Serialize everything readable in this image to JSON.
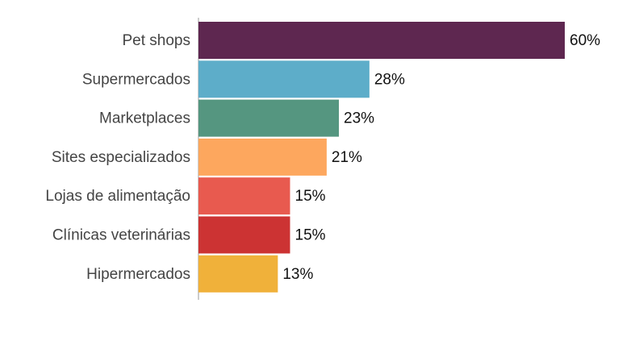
{
  "chart_data": {
    "type": "bar",
    "orientation": "horizontal",
    "categories": [
      "Pet shops",
      "Supermercados",
      "Marketplaces",
      "Sites especializados",
      "Lojas de alimentação",
      "Clínicas veterinárias",
      "Hipermercados"
    ],
    "values": [
      60,
      28,
      23,
      21,
      15,
      15,
      13
    ],
    "value_labels": [
      "60%",
      "28%",
      "23%",
      "21%",
      "15%",
      "15%",
      "13%"
    ],
    "colors": [
      "#5e2750",
      "#5dadc9",
      "#559680",
      "#fda75e",
      "#e85a4f",
      "#cc3333",
      "#f0b13a"
    ]
  }
}
